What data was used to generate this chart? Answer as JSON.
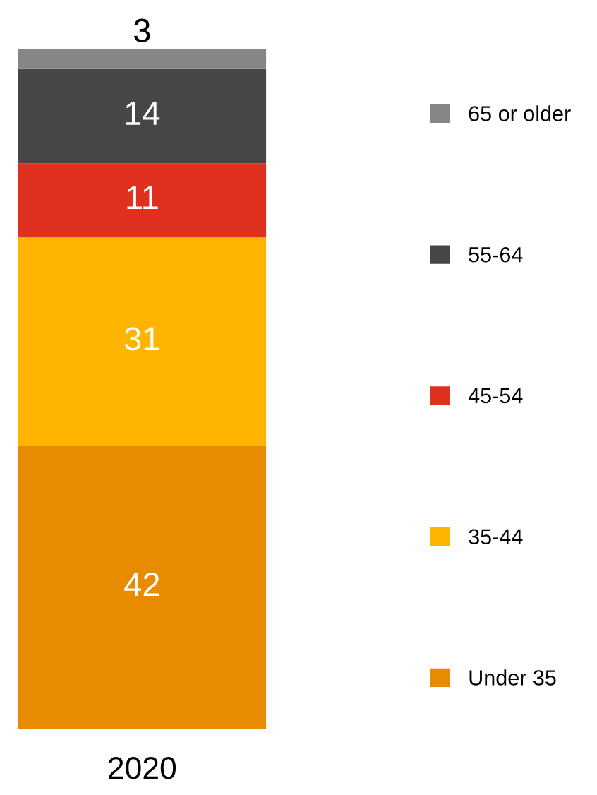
{
  "chart_data": {
    "type": "bar",
    "stacked": true,
    "categories": [
      "2020"
    ],
    "series": [
      {
        "name": "Under 35",
        "color": "#e98b00",
        "values": [
          42
        ]
      },
      {
        "name": "35-44",
        "color": "#ffb400",
        "values": [
          31
        ]
      },
      {
        "name": "45-54",
        "color": "#e03020",
        "values": [
          11
        ]
      },
      {
        "name": "55-64",
        "color": "#464646",
        "values": [
          14
        ]
      },
      {
        "name": "65 or older",
        "color": "#868686",
        "values": [
          3
        ]
      }
    ],
    "data_labels": true,
    "legend": "right"
  }
}
